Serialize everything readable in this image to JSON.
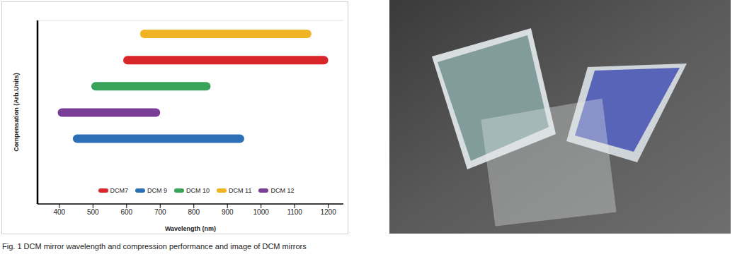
{
  "chart_data": {
    "type": "bar",
    "orientation": "horizontal",
    "x_label": "Wavelength (nm)",
    "y_label": "Compensation (Arb.Units)",
    "categories": [
      "DCM11",
      "DCM7",
      "DCM10",
      "DCM12",
      "DCM9",
      null,
      null
    ],
    "series": [
      {
        "name": "DCM7",
        "color": "#d9262b",
        "range": [
          590,
          1200
        ]
      },
      {
        "name": "DCM 9",
        "color": "#2c6fb5",
        "range": [
          440,
          950
        ]
      },
      {
        "name": "DCM 10",
        "color": "#3aa35a",
        "range": [
          495,
          850
        ]
      },
      {
        "name": "DCM 11",
        "color": "#f0b323",
        "range": [
          640,
          1150
        ]
      },
      {
        "name": "DCM 12",
        "color": "#7a3e96",
        "range": [
          395,
          700
        ]
      }
    ],
    "xlim": [
      335,
      1245
    ],
    "xticks": [
      400,
      500,
      600,
      700,
      800,
      900,
      1000,
      1100,
      1200
    ],
    "grid": true,
    "legend": "bottom",
    "tick_labels": "x"
  },
  "caption": "Fig. 1 DCM mirror wavelength and compression performance and image of DCM mirrors"
}
